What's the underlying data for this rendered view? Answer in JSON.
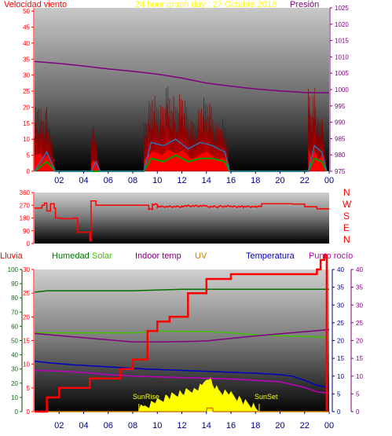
{
  "header": {
    "wind_label": "Velocidad viento",
    "title": "24 hour graph day : 27 Octubre 2018",
    "pressure_label": "Presión"
  },
  "compass": [
    "N",
    "W",
    "S",
    "E",
    "N"
  ],
  "legend": {
    "rain": "Lluvia",
    "humidity": "Humedad",
    "solar": "Solar",
    "indoor": "Indoor temp",
    "uv": "UV",
    "temperature": "Temperatura",
    "dewpoint": "Punto rocío"
  },
  "sun": {
    "rise": "SunRise",
    "set": "SunSet"
  },
  "colors": {
    "wind": "#ff0000",
    "gust_dark": "#8b0000",
    "wind_avg": "#3070b0",
    "wind_low": "#00a000",
    "pressure": "#800080",
    "direction": "#ff0000",
    "rain": "#ff0000",
    "humidity": "#007000",
    "solar": "#ffff00",
    "indoor": "#800080",
    "uv": "#d08000",
    "temperature": "#0000c0",
    "dewpoint": "#c000c0",
    "title": "#ffff00",
    "axis_red": "#ff0000",
    "axis_purple": "#800080",
    "axis_darkgreen": "#004000",
    "axis_navy": "#000080"
  },
  "chart_data": [
    {
      "type": "line",
      "name": "wind",
      "x_ticks": [
        "02",
        "04",
        "06",
        "08",
        "10",
        "12",
        "14",
        "16",
        "18",
        "20",
        "22",
        "00"
      ],
      "left_axis": {
        "ticks": [
          0,
          5,
          10,
          15,
          20,
          25,
          30,
          35,
          40,
          45,
          50
        ],
        "ylim": [
          0,
          51
        ]
      },
      "right_axis": {
        "ticks": [
          975,
          980,
          985,
          990,
          995,
          1000,
          1005,
          1010,
          1015,
          1020,
          1025
        ],
        "ylim": [
          975,
          1025
        ]
      },
      "wind_gust_segments": [
        {
          "x": [
            0.0,
            0.35,
            0.7,
            1.0,
            1.3,
            1.55,
            1.7
          ],
          "peaks": [
            19,
            22,
            17,
            20,
            12,
            6,
            0
          ]
        },
        {
          "x": [
            4.6,
            4.8,
            5.0,
            5.2,
            5.35
          ],
          "peaks": [
            10,
            14,
            10,
            4,
            0
          ]
        },
        {
          "x": [
            8.9,
            9.2,
            9.6,
            10.0,
            10.4,
            10.8,
            11.2,
            11.6,
            12.0,
            12.4,
            12.8,
            13.2,
            13.6,
            14.0,
            14.4,
            14.8,
            15.2,
            15.6,
            15.9
          ],
          "peaks": [
            14,
            20,
            25,
            22,
            20,
            27,
            24,
            22,
            26,
            20,
            15,
            18,
            22,
            24,
            20,
            14,
            17,
            15,
            0
          ]
        },
        {
          "x": [
            22.3,
            22.5,
            22.8,
            23.1,
            23.4,
            23.6,
            23.8
          ],
          "peaks": [
            29,
            18,
            26,
            15,
            20,
            10,
            0
          ]
        }
      ],
      "wind_avg": {
        "x": [
          0,
          1,
          1.7,
          4.6,
          5.0,
          5.35,
          8.9,
          9.5,
          10.5,
          11.5,
          12.5,
          13.5,
          14.5,
          15.5,
          15.9,
          22.3,
          22.8,
          23.4,
          23.8
        ],
        "y": [
          0,
          6,
          0,
          0,
          3,
          0,
          0,
          9,
          8,
          10,
          7,
          9,
          8,
          6,
          0,
          0,
          8,
          6,
          0
        ]
      },
      "wind_low": {
        "x": [
          0,
          1,
          1.7,
          8.9,
          9.5,
          10.5,
          11.5,
          12.5,
          13.5,
          14.5,
          15.5,
          15.9,
          22.3,
          22.8,
          23.4,
          23.8
        ],
        "y": [
          0,
          3,
          0,
          0,
          4,
          3,
          5,
          3,
          4,
          4,
          3,
          0,
          0,
          4,
          3,
          0
        ]
      },
      "pressure": {
        "x": [
          0,
          2,
          4,
          6,
          8,
          10,
          12,
          14,
          16,
          18,
          20,
          22,
          24
        ],
        "y": [
          1008.6,
          1008.0,
          1007.2,
          1006.3,
          1005.6,
          1004.7,
          1003.5,
          1002.0,
          1001.0,
          1000.2,
          999.6,
          999.1,
          999.0
        ]
      }
    },
    {
      "type": "line",
      "name": "wind_direction",
      "left_axis": {
        "ticks": [
          0,
          90,
          180,
          270,
          360
        ],
        "ylim": [
          0,
          360
        ]
      },
      "direction": {
        "x": [
          0,
          0.6,
          0.8,
          1.0,
          1.3,
          1.6,
          1.7,
          2.2,
          3.2,
          3.5,
          4.0,
          4.4,
          4.5,
          4.6,
          5.0,
          6.0,
          8.0,
          9.0,
          9.3,
          9.6,
          10.0,
          12.0,
          14.0,
          15.0,
          16.0,
          17.0,
          18.0,
          18.4,
          18.5,
          20.0,
          21.0,
          22.0,
          23.0,
          24.0
        ],
        "y": [
          250,
          270,
          285,
          230,
          280,
          250,
          180,
          175,
          180,
          80,
          80,
          80,
          20,
          300,
          270,
          270,
          270,
          270,
          240,
          275,
          260,
          265,
          260,
          262,
          260,
          260,
          262,
          262,
          280,
          280,
          278,
          260,
          245,
          260
        ]
      }
    },
    {
      "type": "line",
      "name": "temperature_humidity",
      "x_ticks": [
        "02",
        "04",
        "06",
        "08",
        "10",
        "12",
        "14",
        "16",
        "18",
        "20",
        "22",
        "00"
      ],
      "axis_rain": {
        "ticks": [
          0,
          10,
          20,
          30,
          40,
          50,
          60,
          70,
          80,
          90,
          100
        ],
        "ylim": [
          0,
          100
        ]
      },
      "axis_indoor": {
        "ticks": [
          0,
          5,
          10,
          15,
          20,
          25,
          30
        ],
        "ylim": [
          0,
          30
        ]
      },
      "axis_temp": {
        "ticks": [
          0,
          5,
          10,
          15,
          20,
          25,
          30,
          35,
          40
        ],
        "ylim": [
          0,
          40
        ]
      },
      "axis_dewpoint": {
        "ticks": [
          0,
          5,
          10,
          15,
          20,
          25,
          30,
          35,
          40
        ],
        "ylim": [
          0,
          40
        ]
      },
      "humidity": {
        "x": [
          0,
          1,
          4,
          8,
          12,
          16,
          20,
          24
        ],
        "y": [
          84,
          85,
          85,
          85,
          86,
          86,
          86,
          86
        ]
      },
      "rain": {
        "x": [
          0,
          0.3,
          1.0,
          1.2,
          2.0,
          4.5,
          7.0,
          8.0,
          8.8,
          9.2,
          10.0,
          11.0,
          12.0,
          12.5,
          13.0,
          14.0,
          16.0,
          20.0,
          23.0,
          23.3,
          23.6,
          23.8
        ],
        "y": [
          0,
          0,
          3,
          3,
          5,
          7,
          9,
          11,
          11,
          17,
          19,
          20,
          20,
          25,
          25,
          28,
          29,
          29,
          30,
          32,
          33,
          0
        ]
      },
      "indoor": {
        "x": [
          0,
          2,
          4,
          6,
          8,
          10,
          12,
          14,
          16,
          18,
          20,
          22,
          24
        ],
        "y": [
          16.6,
          16.6,
          16.6,
          16.6,
          16.6,
          17.0,
          16.9,
          16.9,
          16.6,
          16.2,
          16.0,
          15.9,
          15.6
        ]
      },
      "solar": {
        "x": [
          0,
          8.3,
          9,
          10,
          11,
          12,
          13,
          13.8,
          14.2,
          14.5,
          15,
          16,
          17,
          18,
          18.4,
          24
        ],
        "y": [
          0,
          0,
          1,
          4,
          7,
          9,
          11,
          13,
          18,
          14,
          10,
          8,
          4,
          1,
          0,
          0
        ]
      },
      "uv": {
        "x": [
          0,
          14,
          14.05,
          14.5,
          14.55,
          24
        ],
        "y": [
          0,
          0,
          1,
          1,
          0,
          0
        ]
      },
      "temperature": {
        "x": [
          0,
          1,
          3,
          6,
          9,
          12,
          15,
          18,
          20,
          21,
          22,
          23,
          24
        ],
        "y": [
          14.2,
          13.8,
          13.2,
          12.6,
          12.0,
          11.6,
          11.2,
          10.8,
          10.4,
          10.0,
          8.8,
          7.4,
          6.8
        ]
      },
      "dewpoint": {
        "x": [
          0,
          2,
          4,
          6,
          8,
          10,
          12,
          14,
          16,
          18,
          20,
          22,
          23,
          24
        ],
        "y": [
          11.6,
          11.4,
          11.0,
          10.4,
          10.0,
          9.8,
          9.6,
          9.4,
          9.2,
          8.8,
          8.4,
          6.8,
          5.6,
          5.2
        ]
      },
      "dewpoint_upper": {
        "x": [
          0,
          2,
          4,
          6,
          8,
          10,
          12,
          14,
          16,
          18,
          20,
          22,
          24
        ],
        "y": [
          22.0,
          21.4,
          20.8,
          20.2,
          19.6,
          19.6,
          19.7,
          19.9,
          20.6,
          21.3,
          21.9,
          22.5,
          23.1
        ]
      },
      "sun": {
        "rise_x": 8.5,
        "set_x": 18.3
      }
    }
  ]
}
